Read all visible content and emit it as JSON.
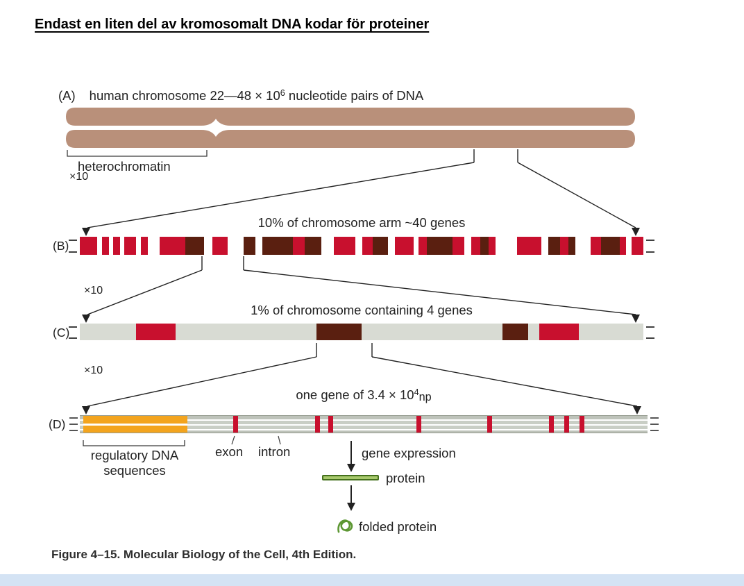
{
  "page": {
    "title": "Endast en liten del av kromosomalt DNA kodar för proteiner",
    "caption": "Figure 4–15. Molecular Biology of the Cell, 4th Edition."
  },
  "colors": {
    "red": "#c8102e",
    "brown": "#5a1f10",
    "white": "#ffffff",
    "gray": "#d8dbd3",
    "chromosome": "#b9907a",
    "orange": "#f3a41e",
    "protein_green": "#a8c96d",
    "protein_green_dark": "#44701c",
    "footer_strip": "#d4e3f4",
    "line": "#222222"
  },
  "panelA": {
    "label": "(A)",
    "title_prefix": "human chromosome 22—48 × 10",
    "title_sup": "6",
    "title_suffix": " nucleotide pairs of DNA",
    "heterochromatin": "heterochromatin",
    "zoom": "×10"
  },
  "panelB": {
    "label": "(B)",
    "title": "10% of chromosome arm ~40 genes",
    "zoom": "×10",
    "segments": [
      [
        "red",
        20
      ],
      [
        "white",
        6
      ],
      [
        "red",
        8
      ],
      [
        "white",
        5
      ],
      [
        "red",
        8
      ],
      [
        "white",
        5
      ],
      [
        "red",
        14
      ],
      [
        "white",
        6
      ],
      [
        "red",
        8
      ],
      [
        "white",
        14
      ],
      [
        "red",
        30
      ],
      [
        "brown",
        22
      ],
      [
        "white",
        10
      ],
      [
        "red",
        18
      ],
      [
        "white",
        18
      ],
      [
        "brown",
        14
      ],
      [
        "white",
        8
      ],
      [
        "brown",
        36
      ],
      [
        "red",
        14
      ],
      [
        "brown",
        20
      ],
      [
        "white",
        14
      ],
      [
        "red",
        26
      ],
      [
        "white",
        8
      ],
      [
        "red",
        12
      ],
      [
        "brown",
        18
      ],
      [
        "white",
        8
      ],
      [
        "red",
        22
      ],
      [
        "white",
        6
      ],
      [
        "red",
        10
      ],
      [
        "brown",
        30
      ],
      [
        "red",
        14
      ],
      [
        "white",
        8
      ],
      [
        "red",
        10
      ],
      [
        "brown",
        10
      ],
      [
        "red",
        8
      ],
      [
        "white",
        26
      ],
      [
        "red",
        28
      ],
      [
        "white",
        8
      ],
      [
        "brown",
        14
      ],
      [
        "red",
        10
      ],
      [
        "brown",
        8
      ],
      [
        "white",
        18
      ],
      [
        "red",
        12
      ],
      [
        "brown",
        22
      ],
      [
        "red",
        8
      ],
      [
        "white",
        6
      ],
      [
        "red",
        14
      ]
    ]
  },
  "panelC": {
    "label": "(C)",
    "title": "1% of chromosome containing 4 genes",
    "zoom": "×10",
    "segments": [
      [
        "gray",
        10
      ],
      [
        "red",
        7
      ],
      [
        "gray",
        25
      ],
      [
        "brown",
        8
      ],
      [
        "gray",
        25
      ],
      [
        "brown",
        4.5
      ],
      [
        "gray",
        2
      ],
      [
        "red",
        7
      ],
      [
        "gray",
        11.5
      ]
    ]
  },
  "panelD": {
    "label": "(D)",
    "title_prefix": "one gene of 3.4 × 10",
    "title_sup": "4",
    "title_suffix": "np",
    "regulatory_line1": "regulatory DNA",
    "regulatory_line2": "sequences",
    "exon_label": "exon",
    "intron_label": "intron",
    "gene_expression": "gene expression",
    "protein": "protein",
    "folded_protein": "folded protein",
    "orange_left_pct": 0.6,
    "orange_width_pct": 18.4,
    "exon_ticks_pct": [
      27,
      41.5,
      43.8,
      59.3,
      71.8,
      82.6,
      85.3,
      88
    ]
  }
}
